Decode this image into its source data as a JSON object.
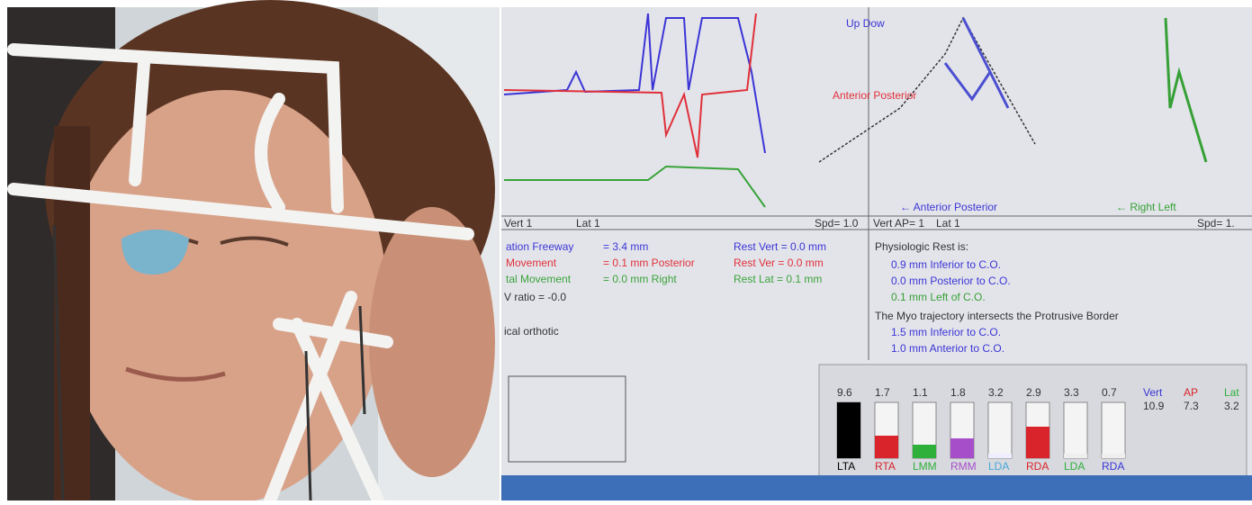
{
  "screen": {
    "graph_left": {
      "vert": "Vert 1",
      "lat": "Lat 1",
      "speed": "Spd= 1.0"
    },
    "graph_right": {
      "vert": "Vert AP= 1",
      "lat": "Lat 1",
      "speed": "Spd= 1.",
      "ap_label": "← Anterior  Posterior",
      "lat_label": "← Right   Left",
      "up_label": "Up Dow",
      "ant_label": "Anterior Posterior"
    },
    "measurements": [
      [
        "ation Freeway",
        "= 3.4 mm",
        "Rest Vert = 0.0 mm"
      ],
      [
        "Movement",
        "= 0.1 mm Posterior",
        "Rest Ver = 0.0 mm"
      ],
      [
        "tal Movement",
        "= 0.0 mm Right",
        "Rest Lat = 0.1 mm"
      ]
    ],
    "ratio": "V ratio = -0.0",
    "orthotic": "ical orthotic",
    "rest": {
      "title": "Physiologic Rest is:",
      "lines": [
        "0.9 mm Inferior to C.O.",
        "0.0 mm Posterior to C.O.",
        "0.1 mm Left of C.O."
      ]
    },
    "trajectory": {
      "title": "The Myo trajectory intersects the Protrusive Border",
      "lines": [
        "1.5 mm Inferior to C.O.",
        "1.0 mm Anterior to C.O."
      ]
    },
    "emg": {
      "values": [
        "9.6",
        "1.7",
        "1.1",
        "1.8",
        "3.2",
        "2.9",
        "3.3",
        "0.7"
      ],
      "labels": [
        "LTA",
        "RTA",
        "LMM",
        "RMM",
        "LDA",
        "RDA",
        "LDA",
        "RDA"
      ],
      "axes": [
        "Vert",
        "AP",
        "Lat"
      ],
      "axis_values": [
        "10.9",
        "7.3",
        "3.2"
      ]
    }
  }
}
